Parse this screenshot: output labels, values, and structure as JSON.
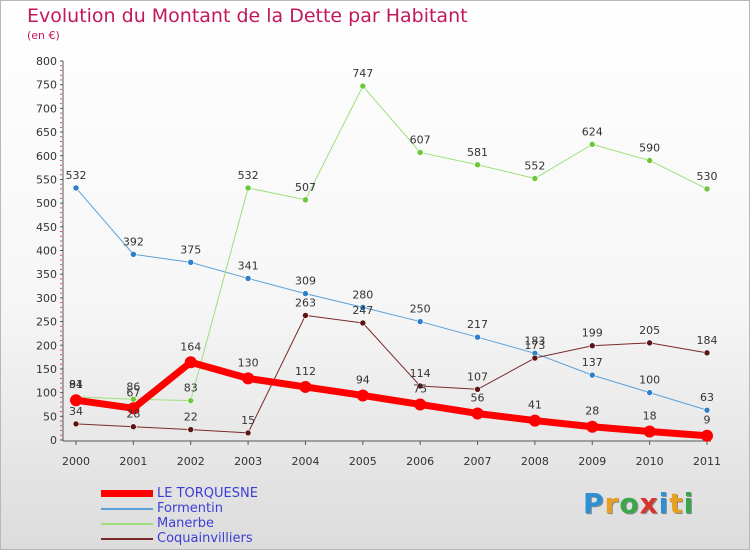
{
  "title": "Evolution du Montant de la Dette par Habitant",
  "subtitle": "(en €)",
  "logo": {
    "text": "Proxiti",
    "letters": [
      {
        "char": "P",
        "color": "#2e8fd4"
      },
      {
        "char": "r",
        "color": "#e8a020"
      },
      {
        "char": "o",
        "color": "#3aa84a"
      },
      {
        "char": "x",
        "color": "#d6342e"
      },
      {
        "char": "i",
        "color": "#2e8fd4"
      },
      {
        "char": "t",
        "color": "#e8a020"
      },
      {
        "char": "i",
        "color": "#3aa84a"
      }
    ]
  },
  "chart_data": {
    "type": "line",
    "x": [
      "2000",
      "2001",
      "2002",
      "2003",
      "2004",
      "2005",
      "2006",
      "2007",
      "2008",
      "2009",
      "2010",
      "2011"
    ],
    "ylim": [
      0,
      800
    ],
    "yticks": [
      0,
      50,
      100,
      150,
      200,
      250,
      300,
      350,
      400,
      450,
      500,
      550,
      600,
      650,
      700,
      750,
      800
    ],
    "grid": false,
    "legend": "bottom-left",
    "series": [
      {
        "name": "LE TORQUESNE",
        "color": "#ff0000",
        "marker_color": "#ff0000",
        "width": 7,
        "values": [
          84,
          67,
          164,
          130,
          112,
          94,
          75,
          56,
          41,
          28,
          18,
          9
        ],
        "labels": [
          "84",
          "67",
          "164",
          "130",
          "112",
          "94",
          "75",
          "56",
          "41",
          "28",
          "18",
          "9"
        ]
      },
      {
        "name": "Formentin",
        "color": "#5aa0d8",
        "marker_color": "#2f7fc8",
        "width": 1,
        "values": [
          532,
          392,
          375,
          341,
          309,
          280,
          250,
          217,
          183,
          137,
          100,
          63
        ],
        "labels": [
          "532",
          "392",
          "375",
          "341",
          "309",
          "280",
          "250",
          "217",
          "183",
          "137",
          "100",
          "63"
        ]
      },
      {
        "name": "Manerbe",
        "color": "#9de07a",
        "marker_color": "#6cc83a",
        "width": 1,
        "values": [
          91,
          86,
          83,
          532,
          507,
          747,
          607,
          581,
          552,
          624,
          590,
          530
        ],
        "labels": [
          "91",
          "86",
          "83",
          "532",
          "507",
          "747",
          "607",
          "581",
          "552",
          "624",
          "590",
          "530"
        ]
      },
      {
        "name": "Coquainvilliers",
        "color": "#7a2a2a",
        "marker_color": "#5c1414",
        "width": 1,
        "values": [
          34,
          28,
          22,
          15,
          263,
          247,
          114,
          107,
          173,
          199,
          205,
          184
        ],
        "labels": [
          "34",
          "28",
          "22",
          "15",
          "263",
          "247",
          "114",
          "107",
          "173",
          "199",
          "205",
          "184"
        ]
      }
    ]
  }
}
